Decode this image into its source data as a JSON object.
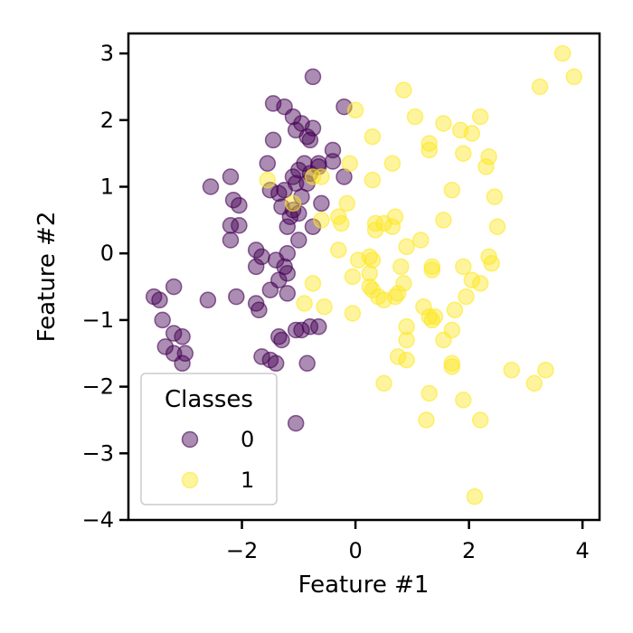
{
  "chart_data": {
    "type": "scatter",
    "title": "",
    "xlabel": "Feature #1",
    "ylabel": "Feature #2",
    "xlim": [
      -4.0,
      4.3
    ],
    "ylim": [
      -4.0,
      3.3
    ],
    "xticks": [
      -2,
      0,
      2,
      4
    ],
    "yticks": [
      3,
      2,
      1,
      0,
      -1,
      -2,
      -3,
      -4
    ],
    "xtick_labels": [
      "−2",
      "0",
      "2",
      "4"
    ],
    "ytick_labels": [
      "3",
      "2",
      "1",
      "0",
      "−1",
      "−2",
      "−3",
      "−4"
    ],
    "grid": false,
    "legend": {
      "title": "Classes",
      "placement": "lower-left",
      "entries": [
        "0",
        "1"
      ]
    },
    "marker_alpha": 0.45,
    "series": [
      {
        "name": "0",
        "color": "#440154",
        "points": [
          [
            -0.75,
            2.65
          ],
          [
            -1.45,
            2.25
          ],
          [
            -1.25,
            2.2
          ],
          [
            -1.1,
            2.05
          ],
          [
            -0.2,
            2.2
          ],
          [
            -0.95,
            1.95
          ],
          [
            -0.75,
            1.88
          ],
          [
            -1.05,
            1.85
          ],
          [
            -0.85,
            1.75
          ],
          [
            -1.45,
            1.7
          ],
          [
            -0.8,
            1.7
          ],
          [
            -0.4,
            1.55
          ],
          [
            -0.9,
            1.35
          ],
          [
            -0.65,
            1.35
          ],
          [
            -0.4,
            1.38
          ],
          [
            -0.65,
            1.3
          ],
          [
            -1.55,
            1.35
          ],
          [
            -1.0,
            1.25
          ],
          [
            -1.1,
            1.15
          ],
          [
            -0.8,
            1.2
          ],
          [
            -0.2,
            1.15
          ],
          [
            -2.2,
            1.15
          ],
          [
            -2.55,
            1.0
          ],
          [
            -1.5,
            0.95
          ],
          [
            -1.25,
            0.95
          ],
          [
            -1.05,
            1.05
          ],
          [
            -0.85,
            1.05
          ],
          [
            -1.35,
            0.9
          ],
          [
            -0.95,
            0.85
          ],
          [
            -2.15,
            0.8
          ],
          [
            -0.6,
            0.75
          ],
          [
            -1.3,
            0.7
          ],
          [
            -2.05,
            0.72
          ],
          [
            -1.1,
            0.65
          ],
          [
            -1.0,
            0.6
          ],
          [
            -1.15,
            0.55
          ],
          [
            -2.2,
            0.42
          ],
          [
            -2.05,
            0.42
          ],
          [
            -0.75,
            0.4
          ],
          [
            -1.2,
            0.4
          ],
          [
            -2.2,
            0.2
          ],
          [
            -1.0,
            0.2
          ],
          [
            -1.75,
            0.05
          ],
          [
            -1.2,
            0.0
          ],
          [
            -1.65,
            -0.05
          ],
          [
            -1.4,
            -0.1
          ],
          [
            -1.25,
            -0.2
          ],
          [
            -1.75,
            -0.2
          ],
          [
            -1.2,
            -0.3
          ],
          [
            -1.35,
            -0.4
          ],
          [
            -1.5,
            -0.55
          ],
          [
            -1.2,
            -0.6
          ],
          [
            -2.6,
            -0.7
          ],
          [
            -3.2,
            -0.5
          ],
          [
            -2.1,
            -0.65
          ],
          [
            -3.55,
            -0.65
          ],
          [
            -3.45,
            -0.7
          ],
          [
            -1.75,
            -0.75
          ],
          [
            -1.7,
            -0.85
          ],
          [
            -3.4,
            -1.0
          ],
          [
            -0.8,
            -1.1
          ],
          [
            -1.05,
            -1.15
          ],
          [
            -0.95,
            -1.15
          ],
          [
            -0.65,
            -1.1
          ],
          [
            -3.2,
            -1.2
          ],
          [
            -3.05,
            -1.25
          ],
          [
            -1.35,
            -1.25
          ],
          [
            -1.3,
            -1.3
          ],
          [
            -3.35,
            -1.4
          ],
          [
            -3.2,
            -1.5
          ],
          [
            -3.0,
            -1.5
          ],
          [
            -1.65,
            -1.55
          ],
          [
            -1.5,
            -1.6
          ],
          [
            -3.05,
            -1.65
          ],
          [
            -0.85,
            -1.65
          ],
          [
            -1.4,
            -1.65
          ],
          [
            -1.05,
            -2.55
          ]
        ]
      },
      {
        "name": "1",
        "color": "#fde725",
        "points": [
          [
            3.65,
            3.0
          ],
          [
            3.85,
            2.65
          ],
          [
            3.25,
            2.5
          ],
          [
            0.85,
            2.45
          ],
          [
            0.0,
            2.15
          ],
          [
            1.05,
            2.05
          ],
          [
            2.2,
            2.05
          ],
          [
            1.55,
            1.95
          ],
          [
            1.85,
            1.85
          ],
          [
            2.05,
            1.8
          ],
          [
            0.3,
            1.75
          ],
          [
            1.3,
            1.65
          ],
          [
            1.3,
            1.55
          ],
          [
            1.9,
            1.5
          ],
          [
            2.35,
            1.45
          ],
          [
            0.65,
            1.35
          ],
          [
            2.3,
            1.3
          ],
          [
            -0.1,
            1.35
          ],
          [
            -0.75,
            1.15
          ],
          [
            -0.6,
            1.15
          ],
          [
            0.3,
            1.1
          ],
          [
            1.7,
            0.95
          ],
          [
            2.45,
            0.85
          ],
          [
            -1.55,
            1.1
          ],
          [
            -0.15,
            0.75
          ],
          [
            -1.1,
            0.75
          ],
          [
            0.7,
            0.55
          ],
          [
            1.55,
            0.5
          ],
          [
            -0.3,
            0.55
          ],
          [
            0.35,
            0.45
          ],
          [
            0.5,
            0.45
          ],
          [
            -0.6,
            0.5
          ],
          [
            -0.25,
            0.45
          ],
          [
            0.65,
            0.4
          ],
          [
            0.35,
            0.35
          ],
          [
            2.5,
            0.4
          ],
          [
            1.15,
            0.2
          ],
          [
            0.9,
            0.1
          ],
          [
            -0.3,
            0.05
          ],
          [
            0.25,
            -0.05
          ],
          [
            0.3,
            -0.1
          ],
          [
            2.35,
            -0.05
          ],
          [
            2.4,
            -0.15
          ],
          [
            0.05,
            -0.1
          ],
          [
            0.8,
            -0.2
          ],
          [
            1.35,
            -0.2
          ],
          [
            1.35,
            -0.25
          ],
          [
            1.9,
            -0.2
          ],
          [
            0.25,
            -0.3
          ],
          [
            -0.05,
            -0.35
          ],
          [
            2.05,
            -0.4
          ],
          [
            2.2,
            -0.45
          ],
          [
            -0.75,
            -0.45
          ],
          [
            0.25,
            -0.5
          ],
          [
            0.85,
            -0.45
          ],
          [
            0.3,
            -0.55
          ],
          [
            0.4,
            -0.65
          ],
          [
            0.75,
            -0.6
          ],
          [
            0.7,
            -0.65
          ],
          [
            1.95,
            -0.65
          ],
          [
            0.5,
            -0.7
          ],
          [
            -0.9,
            -0.75
          ],
          [
            -0.55,
            -0.8
          ],
          [
            1.2,
            -0.8
          ],
          [
            1.75,
            -0.85
          ],
          [
            -0.05,
            -0.9
          ],
          [
            1.3,
            -0.95
          ],
          [
            1.4,
            -0.95
          ],
          [
            1.35,
            -1.0
          ],
          [
            0.9,
            -1.1
          ],
          [
            1.7,
            -1.15
          ],
          [
            0.9,
            -1.3
          ],
          [
            1.55,
            -1.3
          ],
          [
            0.75,
            -1.55
          ],
          [
            0.9,
            -1.6
          ],
          [
            1.7,
            -1.65
          ],
          [
            1.7,
            -1.7
          ],
          [
            2.75,
            -1.75
          ],
          [
            3.35,
            -1.75
          ],
          [
            0.5,
            -1.95
          ],
          [
            3.15,
            -1.95
          ],
          [
            1.3,
            -2.1
          ],
          [
            1.9,
            -2.2
          ],
          [
            1.25,
            -2.5
          ],
          [
            2.2,
            -2.5
          ],
          [
            2.1,
            -3.65
          ]
        ]
      }
    ]
  }
}
